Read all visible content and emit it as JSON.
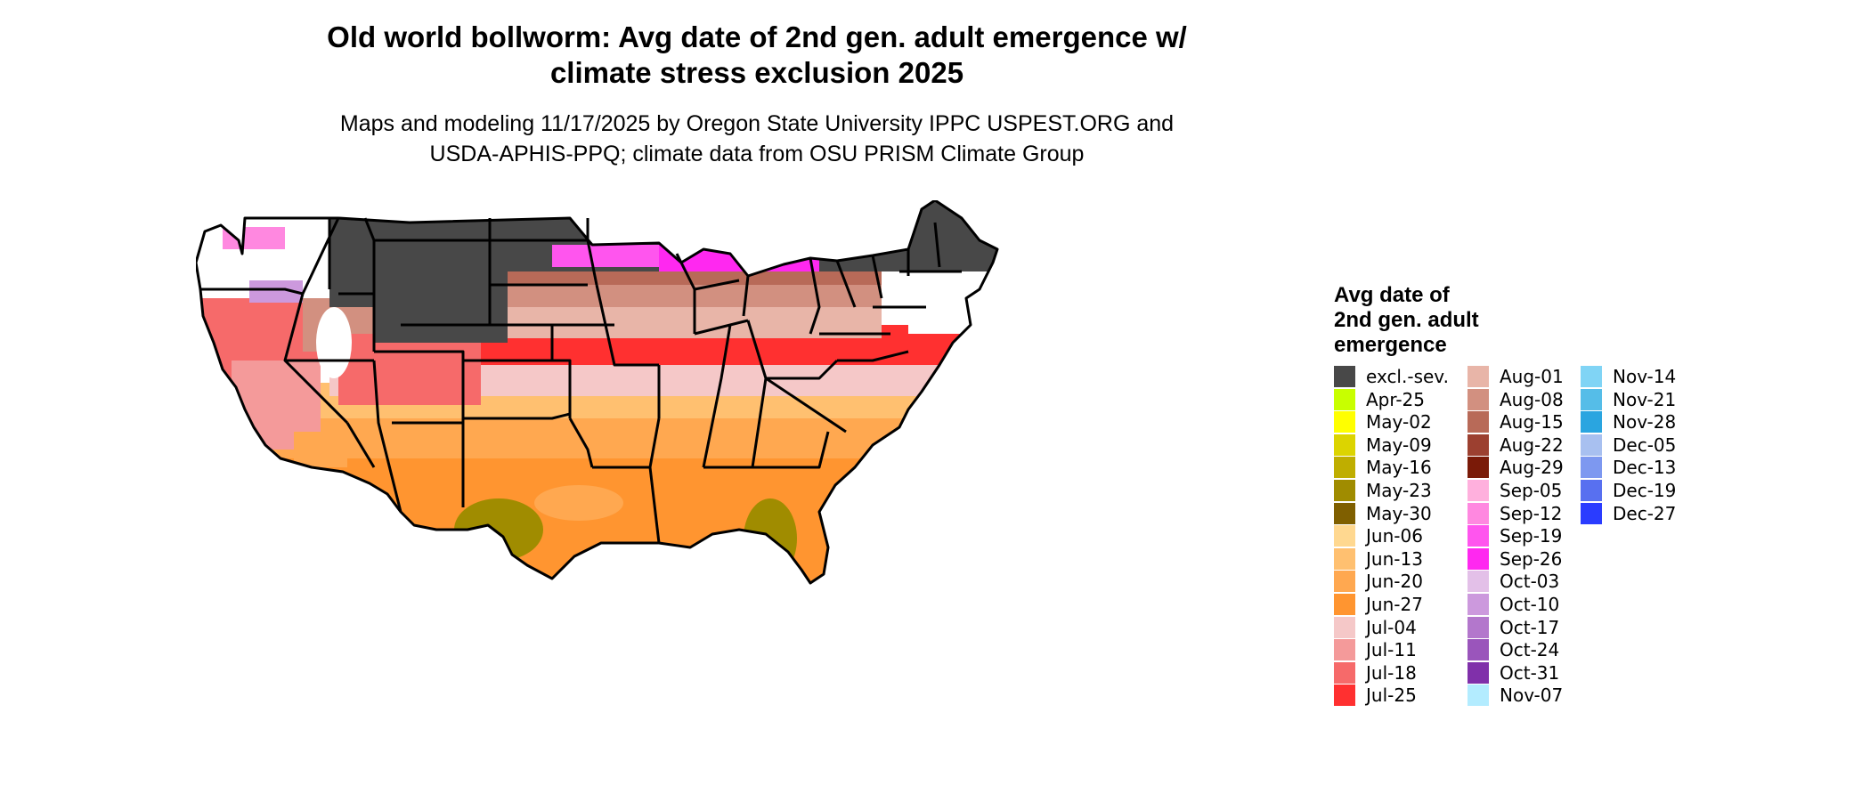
{
  "header": {
    "title_line1": "Old world bollworm: Avg date of 2nd gen. adult emergence w/",
    "title_line2": "climate stress exclusion 2025",
    "subtitle_line1": "Maps and modeling 11/17/2025 by Oregon State University IPPC USPEST.ORG and",
    "subtitle_line2": "USDA-APHIS-PPQ; climate data from OSU PRISM Climate Group"
  },
  "legend": {
    "title_line1": "Avg date of",
    "title_line2": "2nd gen. adult",
    "title_line3": "emergence",
    "columns": [
      [
        {
          "label": "excl.-sev.",
          "color": "#484848"
        },
        {
          "label": "Apr-25",
          "color": "#c8ff00"
        },
        {
          "label": "May-02",
          "color": "#ffff00"
        },
        {
          "label": "May-09",
          "color": "#dcd400"
        },
        {
          "label": "May-16",
          "color": "#bfae00"
        },
        {
          "label": "May-23",
          "color": "#a08c00"
        },
        {
          "label": "May-30",
          "color": "#7f5f00"
        },
        {
          "label": "Jun-06",
          "color": "#ffd890"
        },
        {
          "label": "Jun-13",
          "color": "#ffc070"
        },
        {
          "label": "Jun-20",
          "color": "#ffa850"
        },
        {
          "label": "Jun-27",
          "color": "#ff9530"
        },
        {
          "label": "Jul-04",
          "color": "#f5c8c8"
        },
        {
          "label": "Jul-11",
          "color": "#f49a9a"
        },
        {
          "label": "Jul-18",
          "color": "#f66a6a"
        },
        {
          "label": "Jul-25",
          "color": "#ff3030"
        }
      ],
      [
        {
          "label": "Aug-01",
          "color": "#e8b5a8"
        },
        {
          "label": "Aug-08",
          "color": "#d29080"
        },
        {
          "label": "Aug-15",
          "color": "#b86a58"
        },
        {
          "label": "Aug-22",
          "color": "#9c4030"
        },
        {
          "label": "Aug-29",
          "color": "#7a1a08"
        },
        {
          "label": "Sep-05",
          "color": "#ffb0dd"
        },
        {
          "label": "Sep-12",
          "color": "#ff88e0"
        },
        {
          "label": "Sep-19",
          "color": "#ff55ee"
        },
        {
          "label": "Sep-26",
          "color": "#ff28f0"
        },
        {
          "label": "Oct-03",
          "color": "#e3c0e8"
        },
        {
          "label": "Oct-10",
          "color": "#cc99dd"
        },
        {
          "label": "Oct-17",
          "color": "#b377cc"
        },
        {
          "label": "Oct-24",
          "color": "#9a55bb"
        },
        {
          "label": "Oct-31",
          "color": "#8030aa"
        },
        {
          "label": "Nov-07",
          "color": "#b3ecff"
        }
      ],
      [
        {
          "label": "Nov-14",
          "color": "#80d4f5"
        },
        {
          "label": "Nov-21",
          "color": "#55bde8"
        },
        {
          "label": "Nov-28",
          "color": "#2aa5e0"
        },
        {
          "label": "Dec-05",
          "color": "#a8c0f0"
        },
        {
          "label": "Dec-13",
          "color": "#7d98f0"
        },
        {
          "label": "Dec-19",
          "color": "#5870f0"
        },
        {
          "label": "Dec-27",
          "color": "#2a3cff"
        }
      ]
    ]
  }
}
